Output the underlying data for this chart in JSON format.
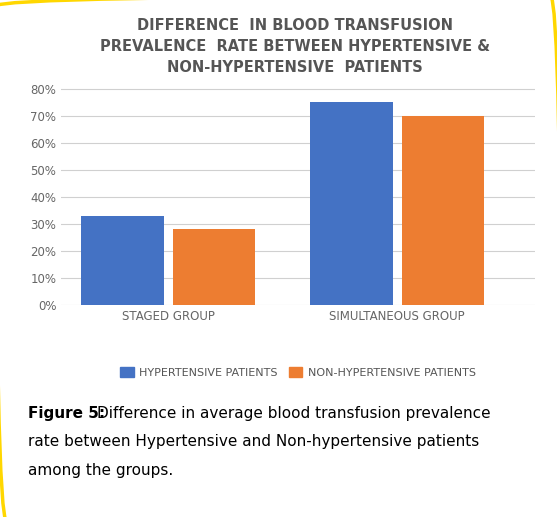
{
  "title_lines": [
    "DIFFERENCE  IN BLOOD TRANSFUSION",
    "PREVALENCE  RATE BETWEEN HYPERTENSIVE &",
    "NON-HYPERTENSIVE  PATIENTS"
  ],
  "groups": [
    "STAGED GROUP",
    "SIMULTANEOUS GROUP"
  ],
  "series": [
    {
      "label": "HYPERTENSIVE PATIENTS",
      "values": [
        0.33,
        0.75
      ],
      "color": "#4472C4"
    },
    {
      "label": "NON-HYPERTENSIVE PATIENTS",
      "values": [
        0.28,
        0.7
      ],
      "color": "#ED7D31"
    }
  ],
  "ylim": [
    0,
    0.88
  ],
  "yticks": [
    0.0,
    0.1,
    0.2,
    0.3,
    0.4,
    0.5,
    0.6,
    0.7,
    0.8
  ],
  "ytick_labels": [
    "0%",
    "10%",
    "20%",
    "30%",
    "40%",
    "50%",
    "60%",
    "70%",
    "80%"
  ],
  "bar_width": 0.27,
  "background_color": "#FFFFFF",
  "border_color": "#FFD700",
  "title_fontsize": 10.5,
  "title_color": "#555555",
  "tick_label_fontsize": 8.5,
  "legend_fontsize": 8,
  "caption_bold": "Figure 5:",
  "caption_line1": " Difference in average blood transfusion prevalence",
  "caption_line2": "rate between Hypertensive and Non-hypertensive patients",
  "caption_line3": "among the groups.",
  "caption_fontsize": 11
}
